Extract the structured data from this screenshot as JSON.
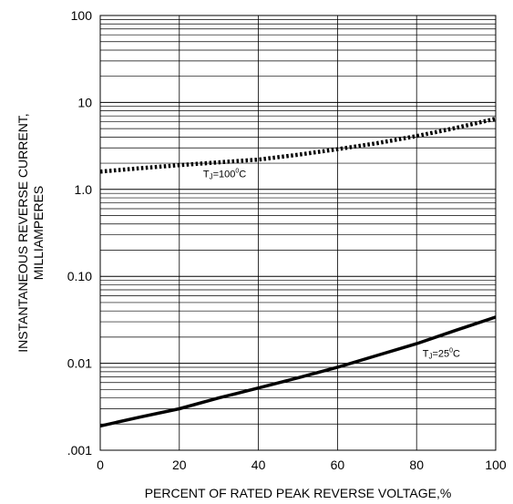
{
  "chart_data": {
    "type": "line",
    "title": "",
    "xlabel": "PERCENT OF RATED PEAK REVERSE VOLTAGE,%",
    "ylabel": [
      "INSTANTANEOUS REVERSE CURRENT,",
      "MILLIAMPERES"
    ],
    "xlim": [
      0,
      100
    ],
    "ylim": [
      0.001,
      100
    ],
    "yscale": "log",
    "grid": true,
    "x_ticks": [
      0,
      20,
      40,
      60,
      80,
      100
    ],
    "x_tick_labels": [
      "0",
      "20",
      "40",
      "60",
      "80",
      "100"
    ],
    "y_ticks": [
      0.001,
      0.01,
      0.1,
      1,
      10,
      100
    ],
    "y_tick_labels": [
      ".001",
      "0.01",
      "0.10",
      "1.0",
      "10",
      "100"
    ],
    "series": [
      {
        "name": "TJ=100°C",
        "style": "dotted",
        "x": [
          0,
          10,
          20,
          30,
          40,
          50,
          60,
          70,
          80,
          90,
          100
        ],
        "y": [
          1.6,
          1.75,
          1.9,
          2.05,
          2.2,
          2.5,
          2.9,
          3.4,
          4.1,
          5.1,
          6.5
        ]
      },
      {
        "name": "TJ=25°C",
        "style": "solid",
        "x": [
          0,
          10,
          20,
          30,
          40,
          50,
          60,
          70,
          80,
          90,
          100
        ],
        "y": [
          0.0019,
          0.0024,
          0.003,
          0.004,
          0.0052,
          0.0068,
          0.009,
          0.0123,
          0.0168,
          0.024,
          0.034
        ]
      }
    ],
    "annotations": [
      {
        "prefix": "T",
        "sub": "J",
        "mid": "=100",
        "sup": "0",
        "suffix": "C",
        "x": 26,
        "y": 1.38
      },
      {
        "prefix": "T",
        "sub": "J",
        "mid": "=25",
        "sup": "0",
        "suffix": "C",
        "x": 81.5,
        "y": 0.0118
      }
    ]
  }
}
